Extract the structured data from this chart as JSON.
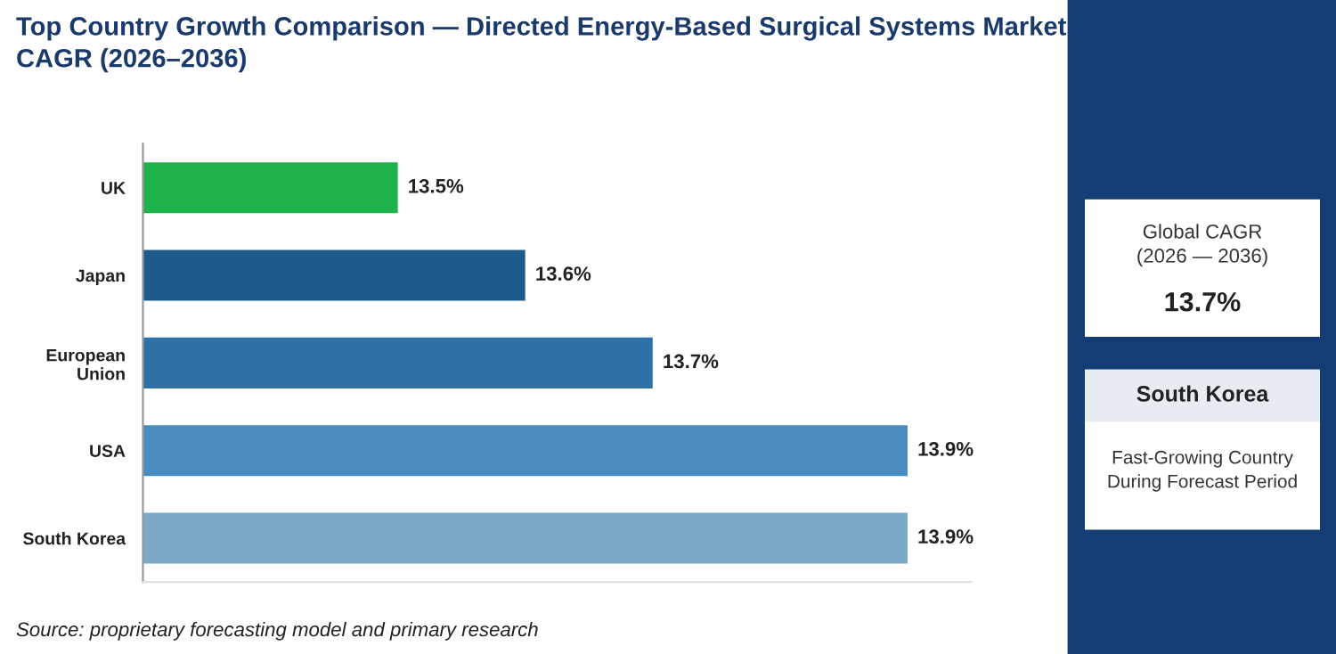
{
  "chart_data": {
    "type": "bar",
    "orientation": "horizontal",
    "title": "Top Country Growth Comparison — Directed Energy-Based Surgical Systems Market\nCAGR (2026–2036)",
    "categories": [
      "UK",
      "Japan",
      "European\nUnion",
      "USA",
      "South Korea"
    ],
    "values": [
      13.5,
      13.6,
      13.7,
      13.9,
      13.9
    ],
    "colors": [
      "#1db34a",
      "#1f5b8a",
      "#2e71a6",
      "#4a8cbf",
      "#7ba8c7"
    ],
    "xlim": [
      13.3,
      13.95
    ],
    "tick_labels": "y",
    "data_labels": true,
    "value_labels": [
      "13.5%",
      "13.6%",
      "13.7%",
      "13.9%",
      "13.9%"
    ],
    "grid": false,
    "legend": false,
    "annotations": [
      "Source: proprietary forecasting model and primary research",
      "Global CAGR\n(2026 — 2036)",
      "13.7%",
      "South Korea",
      "Fast-Growing Country\nDuring Forecast Period"
    ]
  }
}
